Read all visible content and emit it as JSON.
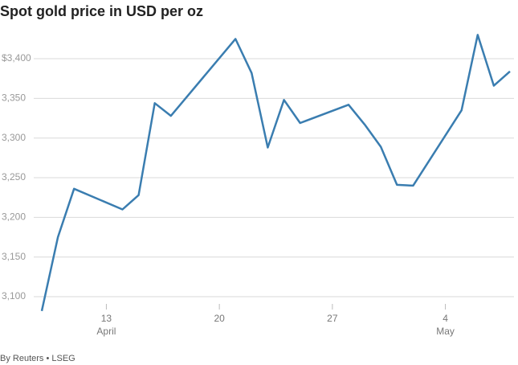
{
  "chart_data": {
    "type": "line",
    "title": "Spot gold price in USD per oz",
    "source": "By Reuters • LSEG",
    "x": [
      "04-09",
      "04-10",
      "04-11",
      "04-14",
      "04-15",
      "04-16",
      "04-17",
      "04-21",
      "04-22",
      "04-23",
      "04-24",
      "04-25",
      "04-28",
      "04-29",
      "04-30",
      "05-01",
      "05-02",
      "05-05",
      "05-06",
      "05-07",
      "05-08"
    ],
    "series": [
      {
        "name": "Spot gold",
        "color": "#3a7db0",
        "values": [
          3082,
          3175,
          3236,
          3210,
          3228,
          3344,
          3328,
          3425,
          3382,
          3288,
          3348,
          3319,
          3342,
          3317,
          3289,
          3241,
          3240,
          3335,
          3430,
          3366,
          3384
        ]
      }
    ],
    "xlim": [
      "04-09",
      "05-08"
    ],
    "xticks": [
      {
        "value": "04-13",
        "label": "13"
      },
      {
        "value": "04-20",
        "label": "20"
      },
      {
        "value": "04-27",
        "label": "27"
      },
      {
        "value": "05-04",
        "label": "4"
      }
    ],
    "x_month_labels": [
      {
        "value": "04-13",
        "label": "April"
      },
      {
        "value": "05-04",
        "label": "May"
      }
    ],
    "ylim": [
      3075,
      3435
    ],
    "yticks": [
      {
        "value": 3100,
        "label": "3,100"
      },
      {
        "value": 3150,
        "label": "3,150"
      },
      {
        "value": 3200,
        "label": "3,200"
      },
      {
        "value": 3250,
        "label": "3,250"
      },
      {
        "value": 3300,
        "label": "3,300"
      },
      {
        "value": 3350,
        "label": "3,350"
      },
      {
        "value": 3400,
        "label": "$3,400"
      }
    ],
    "grid": true
  }
}
